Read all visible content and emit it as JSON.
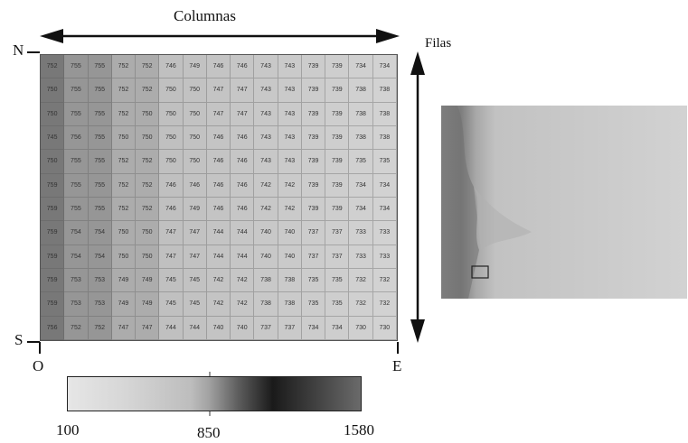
{
  "labels": {
    "columns": "Columnas",
    "rows": "Filas",
    "north": "N",
    "south": "S",
    "west": "O",
    "east": "E"
  },
  "grid": [
    [
      "752",
      "755",
      "755",
      "752",
      "752",
      "746",
      "749",
      "746",
      "746",
      "743",
      "743",
      "739",
      "739",
      "734",
      "734",
      "730"
    ],
    [
      "750",
      "755",
      "755",
      "752",
      "752",
      "750",
      "750",
      "747",
      "747",
      "743",
      "743",
      "739",
      "739",
      "738",
      "738",
      "730"
    ],
    [
      "750",
      "755",
      "755",
      "752",
      "750",
      "750",
      "750",
      "747",
      "747",
      "743",
      "743",
      "739",
      "739",
      "738",
      "738",
      "730"
    ],
    [
      "745",
      "756",
      "755",
      "750",
      "750",
      "750",
      "750",
      "746",
      "746",
      "743",
      "743",
      "739",
      "739",
      "738",
      "738",
      "730"
    ],
    [
      "750",
      "755",
      "755",
      "752",
      "752",
      "750",
      "750",
      "746",
      "746",
      "743",
      "743",
      "739",
      "739",
      "735",
      "735",
      "730"
    ],
    [
      "759",
      "755",
      "755",
      "752",
      "752",
      "746",
      "746",
      "746",
      "746",
      "742",
      "742",
      "739",
      "739",
      "734",
      "734",
      "730"
    ],
    [
      "759",
      "755",
      "755",
      "752",
      "752",
      "746",
      "749",
      "746",
      "746",
      "742",
      "742",
      "739",
      "739",
      "734",
      "734",
      "730"
    ],
    [
      "759",
      "754",
      "754",
      "750",
      "750",
      "747",
      "747",
      "744",
      "744",
      "740",
      "740",
      "737",
      "737",
      "733",
      "733",
      "730"
    ],
    [
      "759",
      "754",
      "754",
      "750",
      "750",
      "747",
      "747",
      "744",
      "744",
      "740",
      "740",
      "737",
      "737",
      "733",
      "733",
      "730"
    ],
    [
      "759",
      "753",
      "753",
      "749",
      "749",
      "745",
      "745",
      "742",
      "742",
      "738",
      "738",
      "735",
      "735",
      "732",
      "732",
      "729"
    ],
    [
      "759",
      "753",
      "753",
      "749",
      "749",
      "745",
      "745",
      "742",
      "742",
      "738",
      "738",
      "735",
      "735",
      "732",
      "732",
      "729"
    ],
    [
      "756",
      "752",
      "752",
      "747",
      "747",
      "744",
      "744",
      "740",
      "740",
      "737",
      "737",
      "734",
      "734",
      "730",
      "730",
      "726"
    ],
    [
      "752",
      "752",
      "752",
      "747",
      "747",
      "744",
      "744",
      "740",
      "740",
      "737",
      "737",
      "734",
      "734",
      "730",
      "730",
      "726"
    ]
  ],
  "colorbar": {
    "ticks": [
      "100",
      "850",
      "1580"
    ],
    "min": 100,
    "max": 1580
  }
}
